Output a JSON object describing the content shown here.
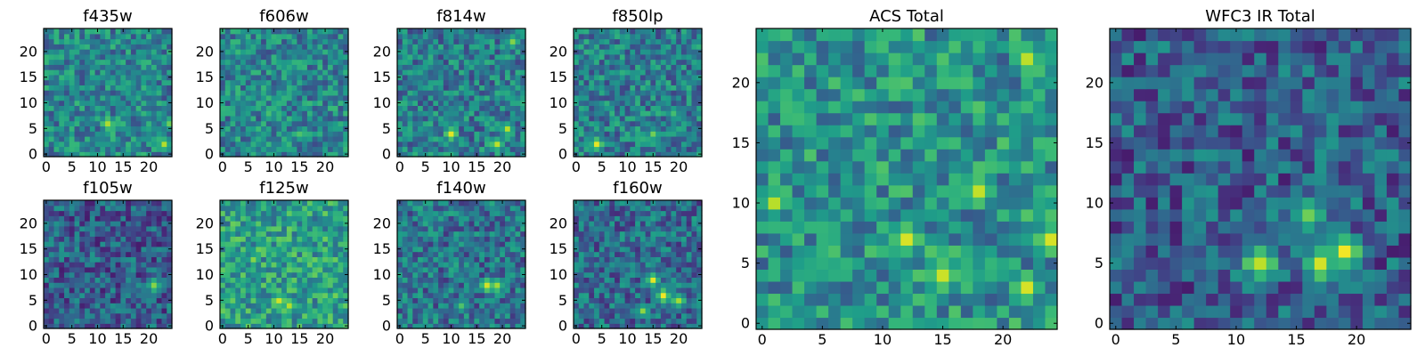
{
  "colormap": "viridis",
  "chart_data": [
    {
      "type": "heatmap",
      "title": "f435w",
      "xlim": [
        0,
        24
      ],
      "ylim": [
        0,
        24
      ],
      "xticks": [
        0,
        5,
        10,
        15,
        20
      ],
      "yticks": [
        0,
        5,
        10,
        15,
        20
      ],
      "bright_spots": [
        {
          "x": 12,
          "y": 6,
          "level": 0.92
        },
        {
          "x": 23,
          "y": 2,
          "level": 0.88
        },
        {
          "x": 24,
          "y": 6,
          "level": 0.8
        }
      ],
      "base_level": 0.45
    },
    {
      "type": "heatmap",
      "title": "f606w",
      "xlim": [
        0,
        24
      ],
      "ylim": [
        0,
        24
      ],
      "xticks": [
        0,
        5,
        10,
        15,
        20
      ],
      "yticks": [
        0,
        5,
        10,
        15,
        20
      ],
      "bright_spots": [
        {
          "x": 9,
          "y": 8,
          "level": 0.7
        },
        {
          "x": 15,
          "y": 4,
          "level": 0.72
        },
        {
          "x": 3,
          "y": 20,
          "level": 0.68
        }
      ],
      "base_level": 0.45
    },
    {
      "type": "heatmap",
      "title": "f814w",
      "xlim": [
        0,
        24
      ],
      "ylim": [
        0,
        24
      ],
      "xticks": [
        0,
        5,
        10,
        15,
        20
      ],
      "yticks": [
        0,
        5,
        10,
        15,
        20
      ],
      "bright_spots": [
        {
          "x": 10,
          "y": 4,
          "level": 0.95
        },
        {
          "x": 19,
          "y": 2,
          "level": 0.9
        },
        {
          "x": 21,
          "y": 5,
          "level": 0.85
        },
        {
          "x": 22,
          "y": 22,
          "level": 0.85
        }
      ],
      "base_level": 0.42
    },
    {
      "type": "heatmap",
      "title": "f850lp",
      "xlim": [
        0,
        24
      ],
      "ylim": [
        0,
        24
      ],
      "xticks": [
        0,
        5,
        10,
        15,
        20
      ],
      "yticks": [
        0,
        5,
        10,
        15,
        20
      ],
      "bright_spots": [
        {
          "x": 4,
          "y": 2,
          "level": 0.92
        },
        {
          "x": 15,
          "y": 4,
          "level": 0.75
        },
        {
          "x": 19,
          "y": 8,
          "level": 0.72
        }
      ],
      "base_level": 0.42
    },
    {
      "type": "heatmap",
      "title": "f105w",
      "xlim": [
        0,
        24
      ],
      "ylim": [
        0,
        24
      ],
      "xticks": [
        0,
        5,
        10,
        15,
        20
      ],
      "yticks": [
        0,
        5,
        10,
        15,
        20
      ],
      "bright_spots": [
        {
          "x": 21,
          "y": 8,
          "level": 0.85
        }
      ],
      "base_level": 0.3
    },
    {
      "type": "heatmap",
      "title": "f125w",
      "xlim": [
        0,
        24
      ],
      "ylim": [
        0,
        24
      ],
      "xticks": [
        0,
        5,
        10,
        15,
        20
      ],
      "yticks": [
        0,
        5,
        10,
        15,
        20
      ],
      "bright_spots": [
        {
          "x": 11,
          "y": 5,
          "level": 0.92
        },
        {
          "x": 13,
          "y": 4,
          "level": 0.9
        },
        {
          "x": 6,
          "y": 13,
          "level": 0.8
        },
        {
          "x": 17,
          "y": 12,
          "level": 0.75
        },
        {
          "x": 22,
          "y": 6,
          "level": 0.75
        }
      ],
      "base_level": 0.55
    },
    {
      "type": "heatmap",
      "title": "f140w",
      "xlim": [
        0,
        24
      ],
      "ylim": [
        0,
        24
      ],
      "xticks": [
        0,
        5,
        10,
        15,
        20
      ],
      "yticks": [
        0,
        5,
        10,
        15,
        20
      ],
      "bright_spots": [
        {
          "x": 17,
          "y": 8,
          "level": 0.95
        },
        {
          "x": 19,
          "y": 8,
          "level": 0.9
        },
        {
          "x": 12,
          "y": 4,
          "level": 0.7
        }
      ],
      "base_level": 0.38
    },
    {
      "type": "heatmap",
      "title": "f160w",
      "xlim": [
        0,
        24
      ],
      "ylim": [
        0,
        24
      ],
      "xticks": [
        0,
        5,
        10,
        15,
        20
      ],
      "yticks": [
        0,
        5,
        10,
        15,
        20
      ],
      "bright_spots": [
        {
          "x": 15,
          "y": 9,
          "level": 0.92
        },
        {
          "x": 17,
          "y": 6,
          "level": 0.95
        },
        {
          "x": 20,
          "y": 5,
          "level": 0.9
        },
        {
          "x": 13,
          "y": 3,
          "level": 0.8
        }
      ],
      "base_level": 0.35
    },
    {
      "type": "heatmap",
      "title": "ACS Total",
      "xlim": [
        0,
        24
      ],
      "ylim": [
        0,
        24
      ],
      "xticks": [
        0,
        5,
        10,
        15,
        20
      ],
      "yticks": [
        0,
        5,
        10,
        15,
        20
      ],
      "bright_spots": [
        {
          "x": 12,
          "y": 7,
          "level": 0.95
        },
        {
          "x": 15,
          "y": 4,
          "level": 0.95
        },
        {
          "x": 18,
          "y": 11,
          "level": 0.92
        },
        {
          "x": 22,
          "y": 3,
          "level": 0.92
        },
        {
          "x": 24,
          "y": 7,
          "level": 0.95
        },
        {
          "x": 22,
          "y": 22,
          "level": 0.9
        },
        {
          "x": 1,
          "y": 10,
          "level": 0.85
        }
      ],
      "base_level": 0.5
    },
    {
      "type": "heatmap",
      "title": "WFC3 IR Total",
      "xlim": [
        0,
        24
      ],
      "ylim": [
        0,
        24
      ],
      "xticks": [
        0,
        5,
        10,
        15,
        20
      ],
      "yticks": [
        0,
        5,
        10,
        15,
        20
      ],
      "bright_spots": [
        {
          "x": 12,
          "y": 5,
          "level": 0.95
        },
        {
          "x": 17,
          "y": 5,
          "level": 0.95
        },
        {
          "x": 19,
          "y": 6,
          "level": 0.97
        },
        {
          "x": 16,
          "y": 9,
          "level": 0.8
        }
      ],
      "base_level": 0.3
    }
  ]
}
